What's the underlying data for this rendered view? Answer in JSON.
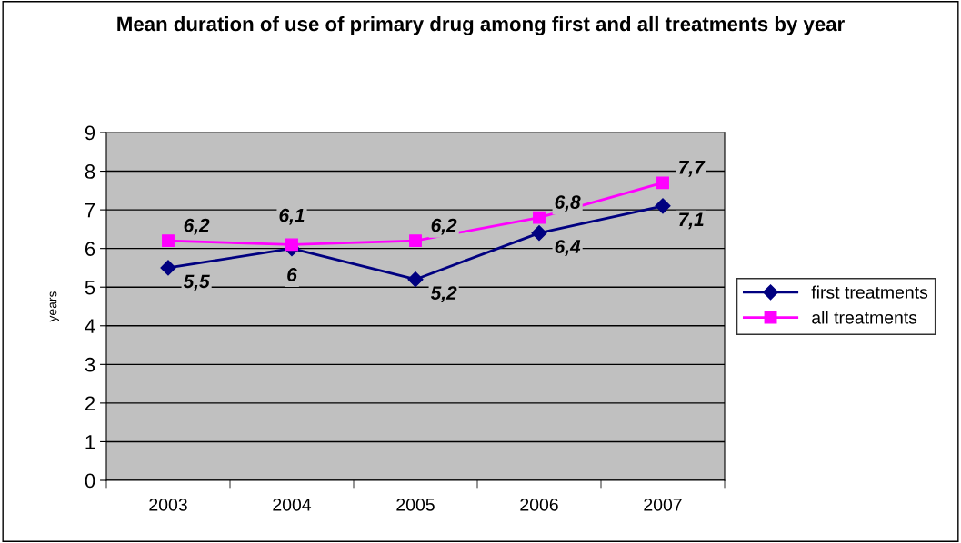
{
  "chart_data": {
    "type": "line",
    "title": "Mean duration of use of primary drug among first and all treatments by year",
    "ylabel": "years",
    "categories": [
      "2003",
      "2004",
      "2005",
      "2006",
      "2007"
    ],
    "series": [
      {
        "name": "first treatments",
        "color": "#000080",
        "marker": "diamond",
        "values": [
          5.5,
          6,
          5.2,
          6.4,
          7.1
        ],
        "value_labels": [
          "5,5",
          "6",
          "5,2",
          "6,4",
          "7,1"
        ]
      },
      {
        "name": "all treatments",
        "color": "#ff00ff",
        "marker": "square",
        "values": [
          6.2,
          6.1,
          6.2,
          6.8,
          7.7
        ],
        "value_labels": [
          "6,2",
          "6,1",
          "6,2",
          "6,8",
          "7,7"
        ]
      }
    ],
    "ylim": [
      0,
      9
    ],
    "yticks": [
      0,
      1,
      2,
      3,
      4,
      5,
      6,
      7,
      8,
      9
    ],
    "grid": "y",
    "legend": "right",
    "line_style": "solid"
  }
}
